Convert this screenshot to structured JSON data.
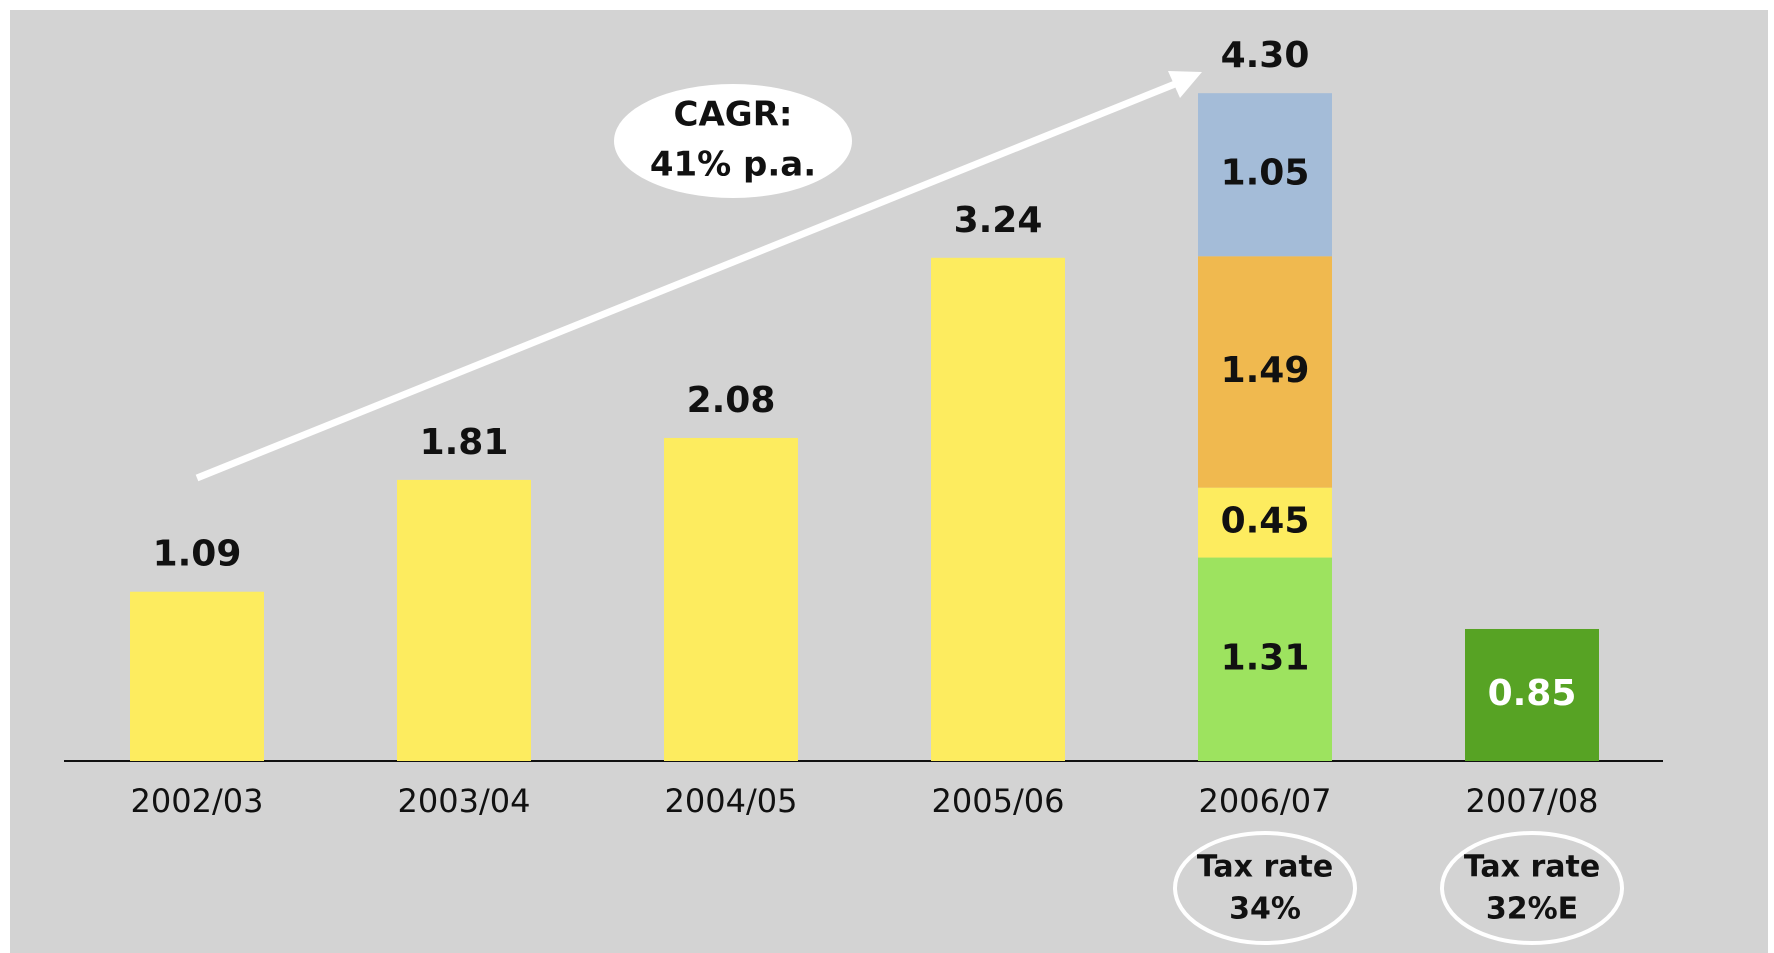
{
  "chart_data": {
    "type": "stacked_bar",
    "categories": [
      "2002/03",
      "2003/04",
      "2004/05",
      "2005/06",
      "2006/07",
      "2007/08"
    ],
    "series": [
      {
        "color": "#9de35f",
        "label_color": "#111111",
        "values": [
          null,
          null,
          null,
          null,
          1.31,
          null
        ]
      },
      {
        "color": "#fdec5f",
        "label_color": "#111111",
        "values": [
          1.09,
          1.81,
          2.08,
          3.24,
          0.45,
          null
        ],
        "label_position": [
          "above",
          "above",
          "above",
          "above",
          "inside",
          null
        ]
      },
      {
        "color": "#f0b94f",
        "label_color": "#111111",
        "values": [
          null,
          null,
          null,
          null,
          1.49,
          null
        ]
      },
      {
        "color": "#a4bcd8",
        "label_color": "#111111",
        "values": [
          null,
          null,
          null,
          null,
          1.05,
          null
        ]
      },
      {
        "color": "#57a324",
        "label_color": "#ffffff",
        "values": [
          null,
          null,
          null,
          null,
          null,
          0.85
        ]
      }
    ],
    "totals": [
      null,
      null,
      null,
      null,
      4.3,
      null
    ],
    "total_labels": [
      null,
      null,
      null,
      null,
      "4.30",
      null
    ],
    "category_notes": [
      null,
      null,
      null,
      null,
      [
        "Tax rate",
        "34%"
      ],
      [
        "Tax rate",
        "32%E"
      ]
    ],
    "annotation": [
      "CAGR:",
      "41% p.a."
    ],
    "ylim": [
      0,
      4.9
    ]
  }
}
